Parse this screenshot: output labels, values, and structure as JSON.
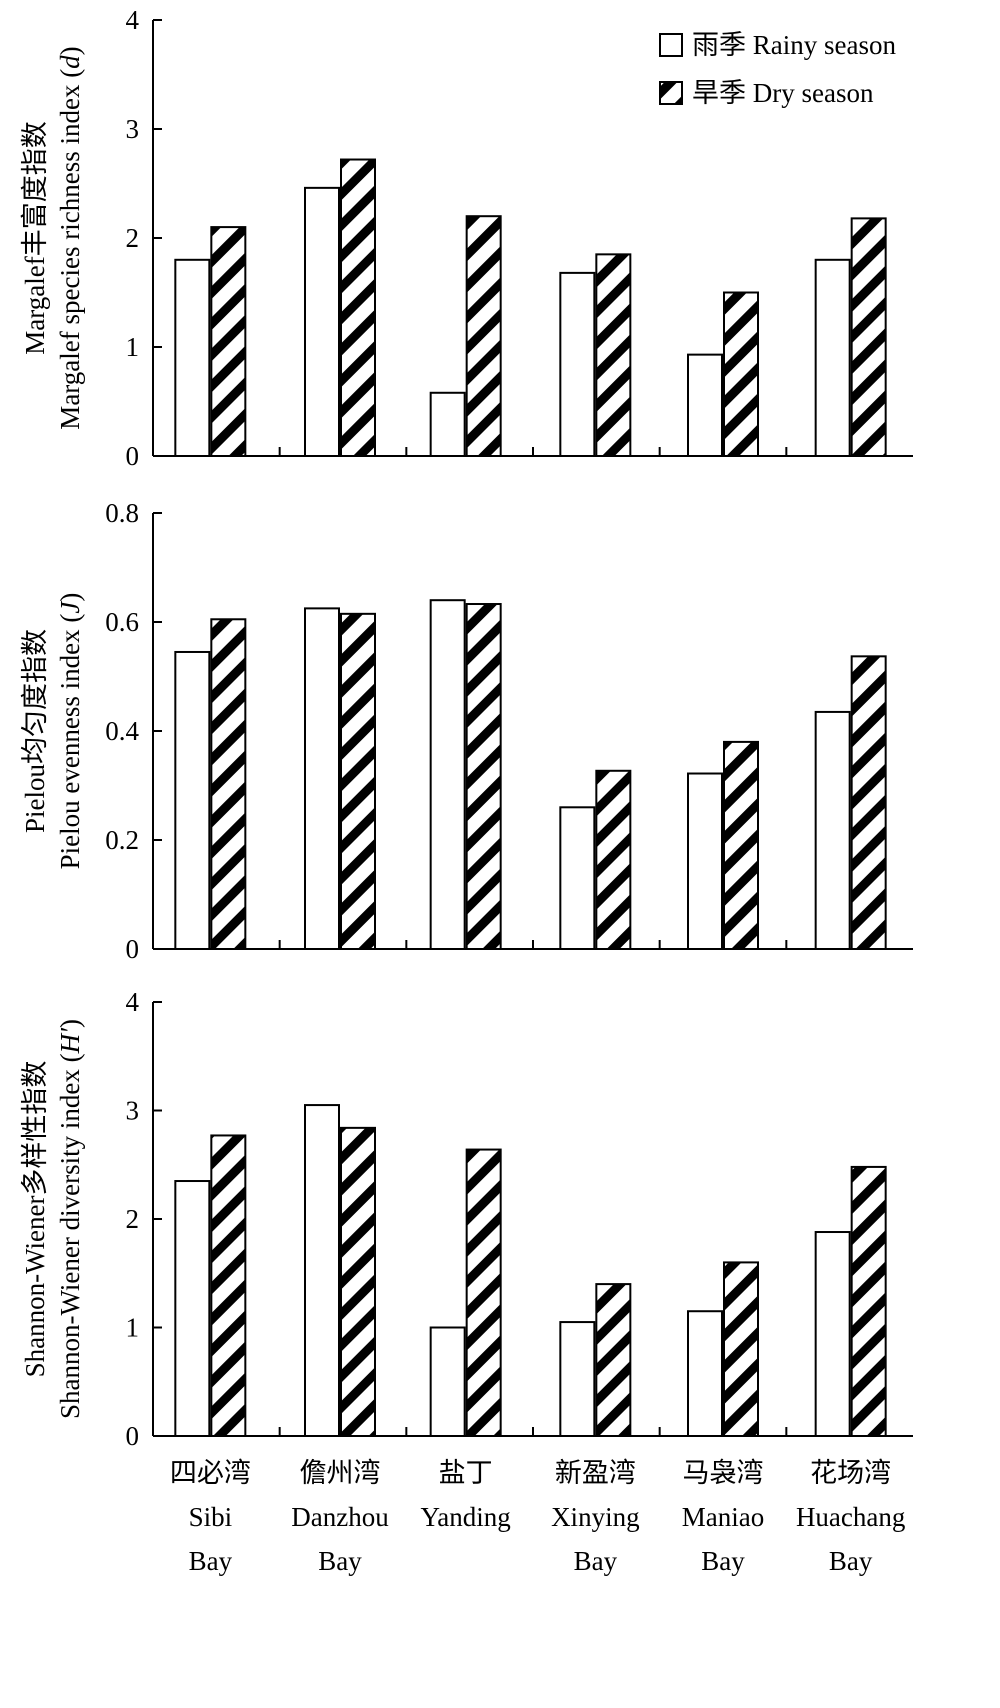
{
  "colors": {
    "rainy_fill": "#ffffff",
    "dry_fill": "#ffffff",
    "dry_hatch": "#000000",
    "axis": "#000000"
  },
  "legend": {
    "placement": "top-right",
    "rainy": "雨季 Rainy season",
    "dry": "旱季 Dry season"
  },
  "categories": [
    {
      "zh": "四必湾",
      "en1": "Sibi",
      "en2": "Bay"
    },
    {
      "zh": "儋州湾",
      "en1": "Danzhou",
      "en2": "Bay"
    },
    {
      "zh": "盐丁",
      "en1": "Yanding",
      "en2": ""
    },
    {
      "zh": "新盈湾",
      "en1": "Xinying",
      "en2": "Bay"
    },
    {
      "zh": "马袅湾",
      "en1": "Maniao",
      "en2": "Bay"
    },
    {
      "zh": "花场湾",
      "en1": "Huachang",
      "en2": "Bay"
    }
  ],
  "chart_data": [
    {
      "type": "bar",
      "ylabel_line1": "Margalef丰富度指数",
      "ylabel_line2_text": "Margalef species richness index (",
      "ylabel_symbol": "d",
      "ylabel_suffix": ")",
      "ylim": [
        0,
        4
      ],
      "yticks": [
        "0",
        "1",
        "2",
        "3",
        "4"
      ],
      "series": [
        {
          "name": "雨季 Rainy season",
          "values": [
            1.8,
            2.46,
            0.58,
            1.68,
            0.93,
            1.8
          ]
        },
        {
          "name": "旱季 Dry season",
          "values": [
            2.1,
            2.72,
            2.2,
            1.85,
            1.5,
            2.18
          ]
        }
      ]
    },
    {
      "type": "bar",
      "ylabel_line1": "Pielou均匀度指数",
      "ylabel_line2_text": "Pielou evenness index (",
      "ylabel_symbol": "J",
      "ylabel_suffix": ")",
      "ylim": [
        0,
        0.8
      ],
      "yticks": [
        "0",
        "0.2",
        "0.4",
        "0.6",
        "0.8"
      ],
      "series": [
        {
          "name": "雨季 Rainy season",
          "values": [
            0.545,
            0.625,
            0.64,
            0.26,
            0.322,
            0.435
          ]
        },
        {
          "name": "旱季 Dry season",
          "values": [
            0.605,
            0.615,
            0.633,
            0.327,
            0.38,
            0.537
          ]
        }
      ]
    },
    {
      "type": "bar",
      "ylabel_line1": "Shannon-Wiener多样性指数",
      "ylabel_line2_text": "Shannon-Wiener diversity index (",
      "ylabel_symbol": "H′",
      "ylabel_suffix": ")",
      "ylim": [
        0,
        4
      ],
      "yticks": [
        "0",
        "1",
        "2",
        "3",
        "4"
      ],
      "series": [
        {
          "name": "雨季 Rainy season",
          "values": [
            2.35,
            3.05,
            1.0,
            1.05,
            1.15,
            1.88
          ]
        },
        {
          "name": "旱季 Dry season",
          "values": [
            2.77,
            2.84,
            2.64,
            1.4,
            1.6,
            2.48
          ]
        }
      ]
    }
  ]
}
